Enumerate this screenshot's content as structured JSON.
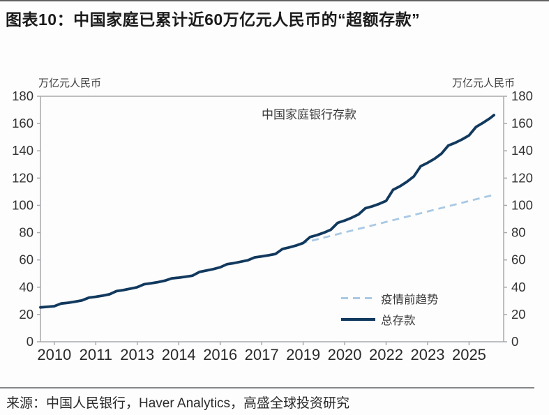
{
  "header": {
    "title": "图表10：中国家庭已累计近60万亿元人民币的“超额存款”"
  },
  "source": {
    "text": "来源：中国人民银行，Haver Analytics，高盛全球投资研究"
  },
  "colors": {
    "total_deposits_line": "#12395e",
    "trend_line": "#a9c9e4",
    "axis": "#a7a9ac",
    "tick_label": "#333333",
    "rule": "#85878a"
  },
  "chart_data": {
    "type": "line",
    "title": "中国家庭银行存款",
    "unit_left": "万亿元人民币",
    "unit_right": "万亿元人民币",
    "x_range": [
      2009.5,
      2026.25
    ],
    "y_range": [
      0,
      180
    ],
    "grid": false,
    "legend_position": "inside lower-right",
    "axis_color": "#a7a9ac",
    "tick_label_color": "#333333",
    "y_ticks": [
      0,
      20,
      40,
      60,
      80,
      100,
      120,
      140,
      160,
      180
    ],
    "x_ticks": [
      {
        "value": 2010,
        "label": "2010"
      },
      {
        "value": 2011.5,
        "label": "2011"
      },
      {
        "value": 2013,
        "label": "2013"
      },
      {
        "value": 2014.5,
        "label": "2014"
      },
      {
        "value": 2016,
        "label": "2016"
      },
      {
        "value": 2017.5,
        "label": "2017"
      },
      {
        "value": 2019,
        "label": "2019"
      },
      {
        "value": 2020.5,
        "label": "2020"
      },
      {
        "value": 2022,
        "label": "2022"
      },
      {
        "value": 2023.5,
        "label": "2023"
      },
      {
        "value": 2025,
        "label": "2025"
      }
    ],
    "series": [
      {
        "name": "疫情前趋势",
        "style": "dashed",
        "color": "#a9c9e4",
        "width": 2.8,
        "points": [
          [
            2018.9,
            72.0
          ],
          [
            2025.9,
            107.8
          ]
        ]
      },
      {
        "name": "总存款",
        "style": "solid",
        "color": "#12395e",
        "width": 3.8,
        "points": [
          [
            2009.5,
            25.2
          ],
          [
            2009.75,
            25.6
          ],
          [
            2010,
            26.1
          ],
          [
            2010.25,
            28.0
          ],
          [
            2010.5,
            28.6
          ],
          [
            2010.75,
            29.4
          ],
          [
            2011,
            30.3
          ],
          [
            2011.25,
            32.3
          ],
          [
            2011.5,
            33.0
          ],
          [
            2011.75,
            33.8
          ],
          [
            2012,
            34.8
          ],
          [
            2012.25,
            37.1
          ],
          [
            2012.5,
            37.9
          ],
          [
            2012.75,
            38.9
          ],
          [
            2013,
            40.0
          ],
          [
            2013.25,
            42.2
          ],
          [
            2013.5,
            42.9
          ],
          [
            2013.75,
            43.7
          ],
          [
            2014,
            44.8
          ],
          [
            2014.25,
            46.5
          ],
          [
            2014.5,
            47.0
          ],
          [
            2014.75,
            47.7
          ],
          [
            2015,
            48.5
          ],
          [
            2015.25,
            51.2
          ],
          [
            2015.5,
            52.2
          ],
          [
            2015.75,
            53.3
          ],
          [
            2016,
            54.6
          ],
          [
            2016.25,
            56.9
          ],
          [
            2016.5,
            57.7
          ],
          [
            2016.75,
            58.7
          ],
          [
            2017,
            59.8
          ],
          [
            2017.25,
            61.9
          ],
          [
            2017.5,
            62.6
          ],
          [
            2017.75,
            63.4
          ],
          [
            2018,
            64.4
          ],
          [
            2018.25,
            68.0
          ],
          [
            2018.5,
            69.2
          ],
          [
            2018.75,
            70.6
          ],
          [
            2019,
            72.4
          ],
          [
            2019.25,
            76.8
          ],
          [
            2019.5,
            78.2
          ],
          [
            2019.75,
            80.0
          ],
          [
            2020,
            82.1
          ],
          [
            2020.25,
            87.2
          ],
          [
            2020.5,
            88.9
          ],
          [
            2020.75,
            90.9
          ],
          [
            2021,
            93.4
          ],
          [
            2021.25,
            97.9
          ],
          [
            2021.5,
            99.3
          ],
          [
            2021.75,
            101.1
          ],
          [
            2022,
            103.3
          ],
          [
            2022.25,
            111.4
          ],
          [
            2022.5,
            114.0
          ],
          [
            2022.75,
            117.3
          ],
          [
            2023,
            121.2
          ],
          [
            2023.25,
            128.7
          ],
          [
            2023.5,
            131.2
          ],
          [
            2023.75,
            134.2
          ],
          [
            2024,
            137.9
          ],
          [
            2024.25,
            143.9
          ],
          [
            2024.5,
            145.9
          ],
          [
            2024.75,
            148.4
          ],
          [
            2025,
            151.3
          ],
          [
            2025.25,
            157.5
          ],
          [
            2025.5,
            160.5
          ],
          [
            2025.75,
            163.8
          ],
          [
            2025.9,
            166.2
          ]
        ]
      }
    ]
  }
}
